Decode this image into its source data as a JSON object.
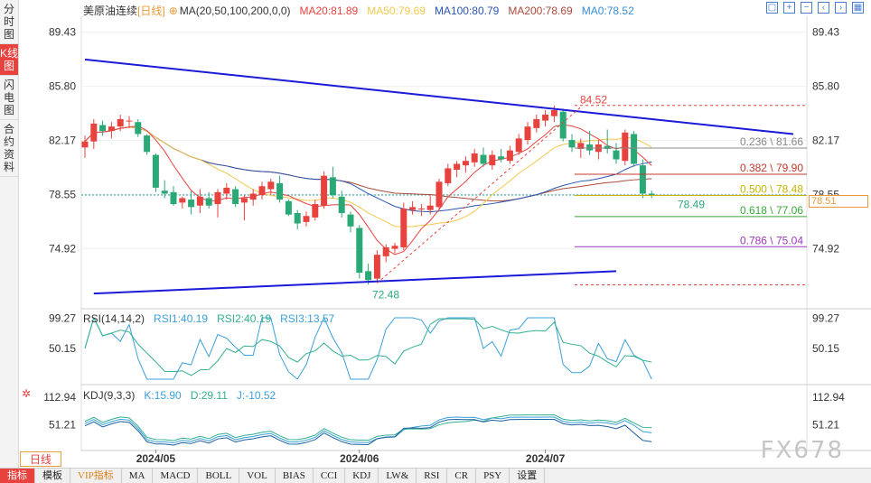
{
  "side_tabs": [
    "分时图",
    "K线图",
    "闪电图",
    "合约资料"
  ],
  "legend": {
    "title": "美原油连续",
    "period": "[日线]",
    "ma_params": "MA(20,50,100,200,0,0)",
    "ma20": "MA20:81.89",
    "ma50": "MA50:79.69",
    "ma100": "MA100:80.79",
    "ma200": "MA200:78.69",
    "ma0": "MA0:78.52"
  },
  "colors": {
    "ma20": "#e8423f",
    "ma50": "#f2c94c",
    "ma100": "#2a56b0",
    "ma200": "#a84a3a",
    "up": "#e8423f",
    "down": "#2aa876",
    "trend": "#1a1ad8"
  },
  "top_icons": [
    "expand-icon",
    "plus-icon",
    "minus-icon",
    "left-icon",
    "right-icon",
    "grid-icon"
  ],
  "price_axis": [
    "89.43",
    "85.80",
    "82.17",
    "78.55",
    "74.92"
  ],
  "current_price_tag": "78.51",
  "annotations": {
    "high": "84.52",
    "low": "72.48",
    "last": "78.49"
  },
  "fib_levels": [
    {
      "label": "0.236 \\ 81.66",
      "value": 81.66
    },
    {
      "label": "0.382 \\ 79.90",
      "value": 79.9
    },
    {
      "label": "0.500 \\ 78.48",
      "value": 78.48
    },
    {
      "label": "0.618 \\ 77.06",
      "value": 77.06
    },
    {
      "label": "0.786 \\ 75.04",
      "value": 75.04
    }
  ],
  "rsi": {
    "title": "RSI(14,14,2)",
    "rsi1": "RSI1:40.19",
    "rsi2": "RSI2:40.19",
    "rsi3": "RSI3:13.57",
    "axis": [
      "99.27",
      "50.15"
    ]
  },
  "kdj": {
    "title": "KDJ(9,3,3)",
    "k": "K:15.90",
    "d": "D:29.11",
    "j": "J:-10.52",
    "axis": [
      "112.94",
      "51.21"
    ]
  },
  "date_axis": [
    "2024/05",
    "2024/06",
    "2024/07"
  ],
  "period_button": "日线",
  "bottom_tabs": [
    "指标",
    "模板",
    "VIP指标",
    "MA",
    "MACD",
    "BOLL",
    "VOL",
    "BIAS",
    "CCI",
    "KDJ",
    "LW&",
    "RSI",
    "CR",
    "PSY",
    "设置"
  ],
  "watermark": "FX678",
  "chart_data": {
    "type": "candlestick",
    "candles": [
      {
        "o": 81.7,
        "h": 82.5,
        "l": 81.0,
        "c": 82.1
      },
      {
        "o": 82.1,
        "h": 83.6,
        "l": 81.6,
        "c": 83.3
      },
      {
        "o": 83.2,
        "h": 83.5,
        "l": 82.5,
        "c": 82.8
      },
      {
        "o": 82.8,
        "h": 83.4,
        "l": 82.3,
        "c": 83.1
      },
      {
        "o": 83.1,
        "h": 83.9,
        "l": 82.8,
        "c": 83.6
      },
      {
        "o": 83.5,
        "h": 83.8,
        "l": 83.0,
        "c": 83.5
      },
      {
        "o": 83.4,
        "h": 83.6,
        "l": 82.4,
        "c": 82.6
      },
      {
        "o": 82.5,
        "h": 82.6,
        "l": 81.2,
        "c": 81.4
      },
      {
        "o": 81.2,
        "h": 81.3,
        "l": 78.7,
        "c": 79.0
      },
      {
        "o": 78.8,
        "h": 79.5,
        "l": 78.3,
        "c": 78.6
      },
      {
        "o": 78.7,
        "h": 79.1,
        "l": 77.8,
        "c": 77.9
      },
      {
        "o": 78.0,
        "h": 78.4,
        "l": 77.6,
        "c": 78.3
      },
      {
        "o": 78.2,
        "h": 78.8,
        "l": 77.2,
        "c": 77.7
      },
      {
        "o": 77.8,
        "h": 78.9,
        "l": 77.3,
        "c": 78.4
      },
      {
        "o": 78.3,
        "h": 78.7,
        "l": 77.6,
        "c": 77.8
      },
      {
        "o": 77.9,
        "h": 78.9,
        "l": 77.0,
        "c": 78.7
      },
      {
        "o": 78.6,
        "h": 79.3,
        "l": 78.2,
        "c": 79.0
      },
      {
        "o": 78.9,
        "h": 79.1,
        "l": 77.7,
        "c": 77.9
      },
      {
        "o": 78.0,
        "h": 78.5,
        "l": 76.8,
        "c": 78.3
      },
      {
        "o": 78.2,
        "h": 78.9,
        "l": 77.8,
        "c": 78.6
      },
      {
        "o": 78.5,
        "h": 79.4,
        "l": 78.2,
        "c": 79.1
      },
      {
        "o": 78.9,
        "h": 79.6,
        "l": 78.5,
        "c": 79.4
      },
      {
        "o": 79.3,
        "h": 79.8,
        "l": 78.0,
        "c": 78.2
      },
      {
        "o": 78.1,
        "h": 78.2,
        "l": 77.1,
        "c": 77.2
      },
      {
        "o": 77.3,
        "h": 77.5,
        "l": 76.2,
        "c": 76.6
      },
      {
        "o": 76.7,
        "h": 77.4,
        "l": 76.4,
        "c": 77.1
      },
      {
        "o": 77.0,
        "h": 78.2,
        "l": 76.8,
        "c": 77.9
      },
      {
        "o": 77.8,
        "h": 80.1,
        "l": 77.6,
        "c": 79.8
      },
      {
        "o": 79.7,
        "h": 80.4,
        "l": 78.3,
        "c": 78.5
      },
      {
        "o": 78.4,
        "h": 78.8,
        "l": 77.0,
        "c": 77.3
      },
      {
        "o": 77.2,
        "h": 77.4,
        "l": 76.0,
        "c": 76.4
      },
      {
        "o": 76.3,
        "h": 76.5,
        "l": 72.9,
        "c": 73.3
      },
      {
        "o": 73.4,
        "h": 73.9,
        "l": 72.5,
        "c": 72.8
      },
      {
        "o": 72.9,
        "h": 74.8,
        "l": 72.7,
        "c": 74.5
      },
      {
        "o": 74.4,
        "h": 75.2,
        "l": 74.0,
        "c": 75.0
      },
      {
        "o": 74.9,
        "h": 75.3,
        "l": 74.6,
        "c": 75.1
      },
      {
        "o": 75.0,
        "h": 78.0,
        "l": 74.8,
        "c": 77.6
      },
      {
        "o": 77.5,
        "h": 78.1,
        "l": 77.2,
        "c": 77.7
      },
      {
        "o": 77.6,
        "h": 77.9,
        "l": 77.1,
        "c": 77.6
      },
      {
        "o": 77.5,
        "h": 78.5,
        "l": 77.2,
        "c": 77.8
      },
      {
        "o": 77.7,
        "h": 79.6,
        "l": 77.5,
        "c": 79.4
      },
      {
        "o": 79.3,
        "h": 80.6,
        "l": 79.1,
        "c": 80.3
      },
      {
        "o": 80.2,
        "h": 80.8,
        "l": 79.7,
        "c": 80.6
      },
      {
        "o": 80.5,
        "h": 81.1,
        "l": 80.0,
        "c": 80.8
      },
      {
        "o": 80.7,
        "h": 81.6,
        "l": 80.4,
        "c": 81.3
      },
      {
        "o": 81.2,
        "h": 81.7,
        "l": 80.4,
        "c": 80.6
      },
      {
        "o": 80.5,
        "h": 81.5,
        "l": 80.2,
        "c": 81.2
      },
      {
        "o": 81.1,
        "h": 81.6,
        "l": 80.7,
        "c": 80.9
      },
      {
        "o": 80.8,
        "h": 81.8,
        "l": 80.6,
        "c": 81.5
      },
      {
        "o": 81.4,
        "h": 82.6,
        "l": 81.2,
        "c": 82.3
      },
      {
        "o": 82.2,
        "h": 83.4,
        "l": 81.9,
        "c": 83.1
      },
      {
        "o": 83.0,
        "h": 83.9,
        "l": 82.7,
        "c": 83.6
      },
      {
        "o": 83.5,
        "h": 84.2,
        "l": 83.1,
        "c": 83.9
      },
      {
        "o": 83.8,
        "h": 84.5,
        "l": 83.4,
        "c": 84.2
      },
      {
        "o": 84.1,
        "h": 84.3,
        "l": 82.1,
        "c": 82.3
      },
      {
        "o": 82.2,
        "h": 82.6,
        "l": 81.4,
        "c": 81.7
      },
      {
        "o": 81.6,
        "h": 82.3,
        "l": 81.0,
        "c": 82.0
      },
      {
        "o": 81.9,
        "h": 82.8,
        "l": 81.2,
        "c": 81.5
      },
      {
        "o": 81.4,
        "h": 82.2,
        "l": 80.9,
        "c": 81.9
      },
      {
        "o": 81.8,
        "h": 82.9,
        "l": 81.3,
        "c": 81.6
      },
      {
        "o": 81.5,
        "h": 82.0,
        "l": 80.6,
        "c": 80.9
      },
      {
        "o": 80.8,
        "h": 82.9,
        "l": 80.5,
        "c": 82.7
      },
      {
        "o": 82.6,
        "h": 82.8,
        "l": 80.4,
        "c": 80.6
      },
      {
        "o": 80.5,
        "h": 80.9,
        "l": 78.3,
        "c": 78.6
      },
      {
        "o": 78.6,
        "h": 78.8,
        "l": 78.3,
        "c": 78.5
      }
    ],
    "trendlines": [
      {
        "from": [
          0,
          87.6
        ],
        "to": [
          80,
          82.6
        ]
      },
      {
        "from": [
          1,
          71.9
        ],
        "to": [
          60,
          73.4
        ]
      }
    ],
    "ylim": [
      71.0,
      90.5
    ],
    "xlabel": "",
    "ylabel": ""
  }
}
